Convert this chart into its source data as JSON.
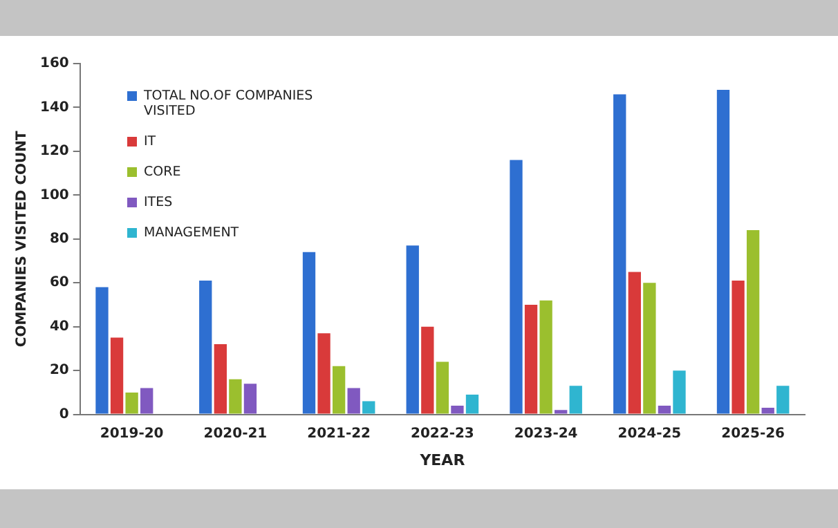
{
  "chart_data": {
    "type": "bar",
    "xlabel": "YEAR",
    "ylabel": "COMPANIES VISITED COUNT",
    "categories": [
      "2019-20",
      "2020-21",
      "2021-22",
      "2022-23",
      "2023-24",
      "2024-25",
      "2025-26"
    ],
    "series": [
      {
        "name": "TOTAL NO.OF COMPANIES VISITED",
        "color": "#2e6fd1",
        "values": [
          58,
          61,
          74,
          77,
          116,
          146,
          148
        ]
      },
      {
        "name": "IT",
        "color": "#d93a3a",
        "values": [
          35,
          32,
          37,
          40,
          50,
          65,
          61
        ]
      },
      {
        "name": "CORE",
        "color": "#9bbf2e",
        "values": [
          10,
          16,
          22,
          24,
          52,
          60,
          84
        ]
      },
      {
        "name": "ITES",
        "color": "#8059c0",
        "values": [
          12,
          14,
          12,
          4,
          2,
          4,
          3
        ]
      },
      {
        "name": "MANAGEMENT",
        "color": "#2fb5d0",
        "values": [
          null,
          null,
          6,
          9,
          13,
          20,
          13
        ]
      }
    ],
    "ylim": [
      0,
      160
    ],
    "yticks": [
      0,
      20,
      40,
      60,
      80,
      100,
      120,
      140,
      160
    ],
    "grid": false,
    "legend": "top left"
  }
}
